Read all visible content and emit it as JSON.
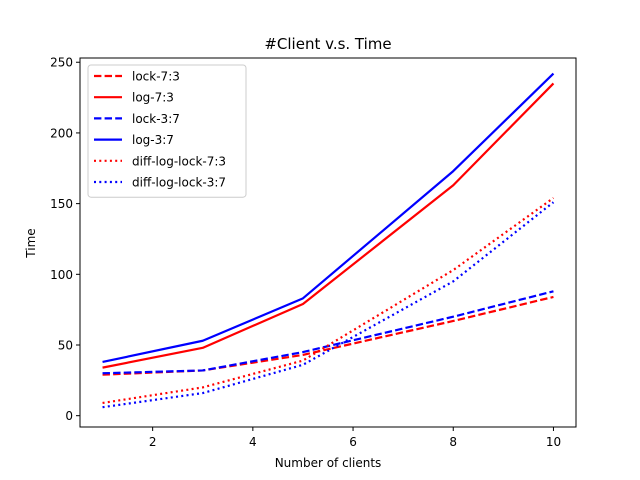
{
  "chart_data": {
    "type": "line",
    "title": "#Client v.s. Time",
    "xlabel": "Number of clients",
    "ylabel": "Time",
    "xlim": [
      0.55,
      10.45
    ],
    "ylim": [
      -8,
      253
    ],
    "xticks": [
      2,
      4,
      6,
      8,
      10
    ],
    "yticks": [
      0,
      50,
      100,
      150,
      200,
      250
    ],
    "grid": false,
    "legend_position": "top-left",
    "x": [
      1,
      3,
      5,
      8,
      10
    ],
    "series": [
      {
        "name": "lock-7:3",
        "color": "#ff0000",
        "style": "dashed",
        "values": [
          29,
          32,
          43,
          67,
          84
        ]
      },
      {
        "name": "log-7:3",
        "color": "#ff0000",
        "style": "solid",
        "values": [
          34,
          48,
          79,
          163,
          235
        ]
      },
      {
        "name": "lock-3:7",
        "color": "#0000ff",
        "style": "dashed",
        "values": [
          30,
          32,
          45,
          70,
          88
        ]
      },
      {
        "name": "log-3:7",
        "color": "#0000ff",
        "style": "solid",
        "values": [
          38,
          53,
          83,
          173,
          242
        ]
      },
      {
        "name": "diff-log-lock-7:3",
        "color": "#ff0000",
        "style": "dotted",
        "values": [
          9,
          20,
          39,
          103,
          154
        ]
      },
      {
        "name": "diff-log-lock-3:7",
        "color": "#0000ff",
        "style": "dotted",
        "values": [
          6,
          16,
          36,
          95,
          151
        ]
      }
    ]
  }
}
